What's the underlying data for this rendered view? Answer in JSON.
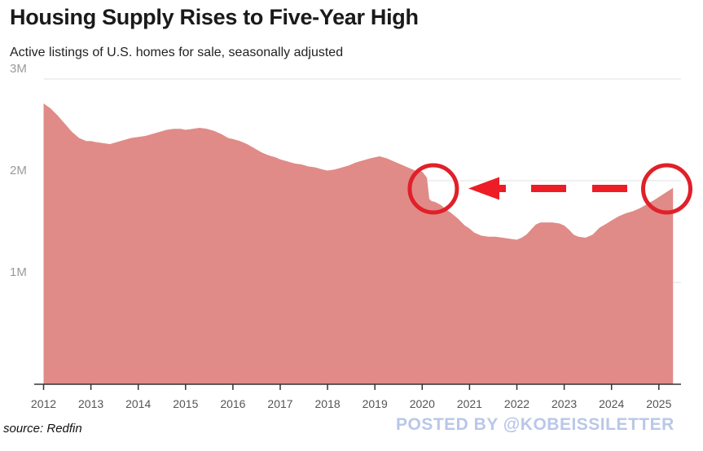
{
  "chart_data": {
    "type": "area",
    "title": "Housing Supply Rises to Five-Year High",
    "subtitle": "Active listings of U.S. homes for sale, seasonally adjusted",
    "xlabel": "",
    "ylabel": "",
    "ylim": [
      0,
      3000000
    ],
    "xlim": [
      2012,
      2025.33
    ],
    "y_ticks": [
      {
        "value": 1000000,
        "label": "1M"
      },
      {
        "value": 2000000,
        "label": "2M"
      },
      {
        "value": 3000000,
        "label": "3M"
      }
    ],
    "x_ticks": [
      "2012",
      "2013",
      "2014",
      "2015",
      "2016",
      "2017",
      "2018",
      "2019",
      "2020",
      "2021",
      "2022",
      "2023",
      "2024",
      "2025"
    ],
    "grid": true,
    "color": "#e08b88",
    "series": [
      {
        "x": [
          2012.0,
          2012.15,
          2012.3,
          2012.45,
          2012.6,
          2012.75,
          2012.9,
          2013.0,
          2013.1,
          2013.25,
          2013.4,
          2013.55,
          2013.7,
          2013.85,
          2014.0,
          2014.15,
          2014.3,
          2014.45,
          2014.6,
          2014.75,
          2014.9,
          2015.0,
          2015.15,
          2015.3,
          2015.45,
          2015.6,
          2015.75,
          2015.9,
          2016.0,
          2016.15,
          2016.3,
          2016.45,
          2016.6,
          2016.75,
          2016.9,
          2017.0,
          2017.15,
          2017.3,
          2017.45,
          2017.6,
          2017.75,
          2017.9,
          2018.0,
          2018.15,
          2018.3,
          2018.45,
          2018.6,
          2018.75,
          2018.9,
          2019.0,
          2019.1,
          2019.25,
          2019.4,
          2019.55,
          2019.7,
          2019.85,
          2020.0,
          2020.1,
          2020.15,
          2020.2,
          2020.28,
          2020.4,
          2020.5,
          2020.62,
          2020.75,
          2020.9,
          2021.0,
          2021.1,
          2021.25,
          2021.4,
          2021.55,
          2021.7,
          2021.85,
          2022.0,
          2022.1,
          2022.2,
          2022.3,
          2022.4,
          2022.5,
          2022.6,
          2022.75,
          2022.9,
          2023.0,
          2023.1,
          2023.2,
          2023.3,
          2023.45,
          2023.6,
          2023.75,
          2023.9,
          2024.0,
          2024.15,
          2024.3,
          2024.45,
          2024.6,
          2024.75,
          2024.9,
          2025.0,
          2025.1,
          2025.2,
          2025.3
        ],
        "values": [
          2760000,
          2710000,
          2640000,
          2560000,
          2480000,
          2420000,
          2390000,
          2390000,
          2380000,
          2370000,
          2360000,
          2380000,
          2400000,
          2420000,
          2430000,
          2440000,
          2460000,
          2480000,
          2500000,
          2510000,
          2510000,
          2500000,
          2510000,
          2520000,
          2510000,
          2490000,
          2460000,
          2420000,
          2410000,
          2390000,
          2360000,
          2320000,
          2280000,
          2250000,
          2230000,
          2210000,
          2190000,
          2170000,
          2160000,
          2140000,
          2130000,
          2110000,
          2100000,
          2110000,
          2130000,
          2150000,
          2180000,
          2200000,
          2220000,
          2230000,
          2240000,
          2220000,
          2190000,
          2160000,
          2130000,
          2100000,
          2090000,
          2030000,
          1820000,
          1800000,
          1790000,
          1760000,
          1720000,
          1680000,
          1630000,
          1560000,
          1530000,
          1490000,
          1460000,
          1450000,
          1450000,
          1440000,
          1430000,
          1420000,
          1440000,
          1470000,
          1520000,
          1570000,
          1590000,
          1590000,
          1590000,
          1580000,
          1560000,
          1520000,
          1470000,
          1450000,
          1440000,
          1470000,
          1540000,
          1580000,
          1610000,
          1650000,
          1680000,
          1700000,
          1730000,
          1770000,
          1810000,
          1840000,
          1870000,
          1900000,
          1930000
        ]
      }
    ]
  },
  "source": "source: Redfin",
  "watermark": "POSTED BY @KOBEISSILETTER",
  "annotations": {
    "circle_color": "#e0202a",
    "arrow_color": "#ee1c24",
    "circles_at": [
      2020.2,
      2025.15
    ],
    "circle_y_value": 1920000
  }
}
